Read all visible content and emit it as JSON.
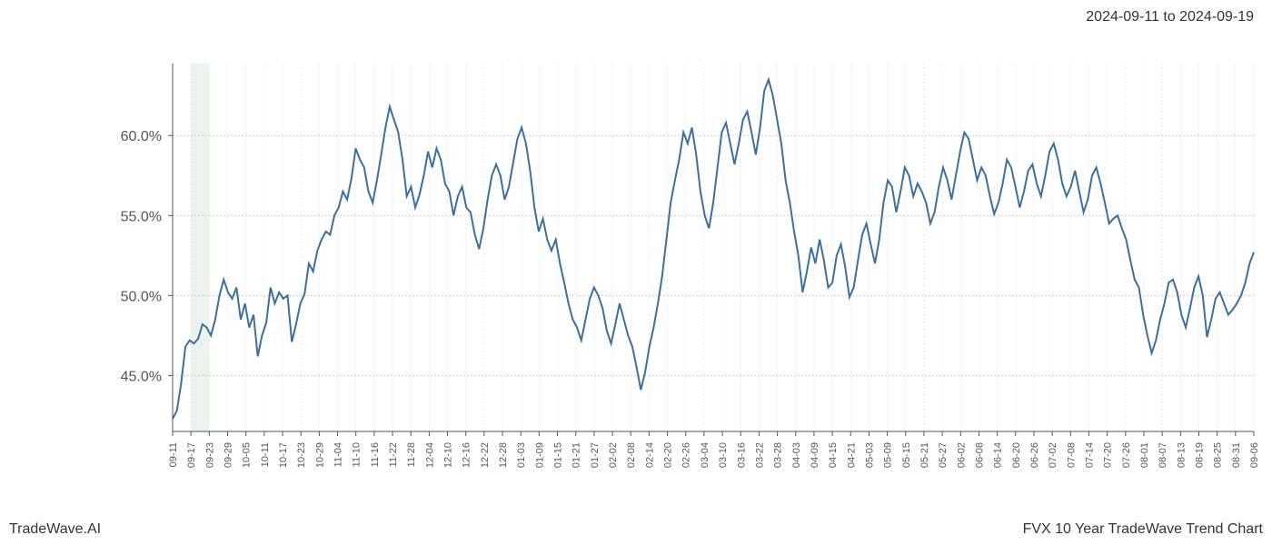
{
  "header": {
    "date_range": "2024-09-11 to 2024-09-19"
  },
  "footer": {
    "brand": "TradeWave.AI",
    "chart_title": "FVX 10 Year TradeWave Trend Chart"
  },
  "chart": {
    "type": "line",
    "background_color": "#ffffff",
    "line_color": "#3b6fa0",
    "line_width": 2,
    "highlight_band_color": "#d9e8d9",
    "grid_color_major": "#cccccc",
    "grid_color_minor": "#dddddd",
    "spine_color": "#555555",
    "y_axis": {
      "ticks": [
        45.0,
        50.0,
        55.0,
        60.0
      ],
      "tick_labels": [
        "45.0%",
        "50.0%",
        "55.0%",
        "60.0%"
      ],
      "ylim": [
        41.5,
        64.5
      ],
      "label_fontsize": 16,
      "label_color": "#555555"
    },
    "x_axis": {
      "tick_labels": [
        "09-11",
        "09-17",
        "09-23",
        "09-29",
        "10-05",
        "10-11",
        "10-17",
        "10-23",
        "10-29",
        "11-04",
        "11-10",
        "11-16",
        "11-22",
        "11-28",
        "12-04",
        "12-10",
        "12-16",
        "12-22",
        "12-28",
        "01-03",
        "01-09",
        "01-15",
        "01-21",
        "01-27",
        "02-02",
        "02-08",
        "02-14",
        "02-20",
        "02-26",
        "03-04",
        "03-10",
        "03-16",
        "03-22",
        "03-28",
        "04-03",
        "04-09",
        "04-15",
        "04-21",
        "05-03",
        "05-09",
        "05-15",
        "05-21",
        "05-27",
        "06-02",
        "06-08",
        "06-14",
        "06-20",
        "06-26",
        "07-02",
        "07-08",
        "07-14",
        "07-20",
        "07-26",
        "08-01",
        "08-07",
        "08-13",
        "08-19",
        "08-25",
        "08-31",
        "09-06"
      ],
      "label_fontsize": 11,
      "label_rotation": 90,
      "label_color": "#555555"
    },
    "highlight_band": {
      "start_index": 1,
      "end_index": 2
    },
    "series": [
      42.3,
      42.8,
      44.5,
      46.8,
      47.2,
      47.0,
      47.3,
      48.2,
      48.0,
      47.5,
      48.5,
      50.0,
      51.0,
      50.2,
      49.8,
      50.5,
      48.5,
      49.5,
      48.0,
      48.8,
      46.2,
      47.5,
      48.3,
      50.5,
      49.5,
      50.2,
      49.8,
      50.0,
      47.1,
      48.2,
      49.5,
      50.1,
      52.0,
      51.5,
      52.8,
      53.5,
      54.0,
      53.8,
      55.0,
      55.5,
      56.5,
      56.0,
      57.3,
      59.2,
      58.5,
      58.0,
      56.5,
      55.8,
      57.2,
      58.8,
      60.5,
      61.8,
      61.0,
      60.2,
      58.5,
      56.2,
      56.8,
      55.5,
      56.3,
      57.5,
      59.0,
      58.0,
      59.2,
      58.5,
      57.0,
      56.5,
      55.0,
      56.2,
      56.8,
      55.5,
      55.2,
      53.8,
      52.9,
      54.2,
      56.0,
      57.5,
      58.2,
      57.5,
      56.0,
      56.8,
      58.3,
      59.8,
      60.5,
      59.5,
      57.8,
      55.5,
      54.0,
      54.8,
      53.5,
      52.8,
      53.5,
      52.0,
      50.8,
      49.5,
      48.5,
      48.0,
      47.2,
      48.5,
      49.8,
      50.5,
      50.0,
      49.2,
      47.8,
      47.0,
      48.2,
      49.5,
      48.5,
      47.5,
      46.8,
      45.5,
      44.1,
      45.2,
      46.8,
      48.0,
      49.5,
      51.2,
      53.5,
      55.8,
      57.2,
      58.5,
      60.2,
      59.5,
      60.5,
      58.8,
      56.5,
      55.0,
      54.2,
      55.8,
      58.0,
      60.2,
      60.8,
      59.5,
      58.2,
      59.5,
      61.0,
      61.5,
      60.2,
      58.8,
      60.5,
      62.8,
      63.5,
      62.5,
      61.0,
      59.5,
      57.2,
      55.8,
      54.0,
      52.5,
      50.2,
      51.5,
      53.0,
      52.0,
      53.5,
      52.2,
      50.5,
      50.8,
      52.5,
      53.2,
      51.8,
      49.9,
      50.5,
      52.2,
      53.8,
      54.5,
      53.2,
      52.0,
      53.5,
      55.8,
      57.2,
      56.8,
      55.2,
      56.5,
      58.0,
      57.5,
      56.2,
      57.0,
      56.5,
      55.8,
      54.5,
      55.2,
      56.8,
      58.0,
      57.2,
      56.0,
      57.5,
      59.0,
      60.2,
      59.8,
      58.5,
      57.2,
      58.0,
      57.5,
      56.2,
      55.1,
      55.8,
      57.0,
      58.5,
      58.0,
      56.8,
      55.5,
      56.5,
      57.8,
      58.2,
      57.0,
      56.2,
      57.5,
      59.0,
      59.5,
      58.5,
      57.0,
      56.2,
      56.8,
      57.8,
      56.5,
      55.2,
      56.0,
      57.5,
      58.0,
      57.0,
      55.8,
      54.5,
      54.8,
      55.0,
      54.2,
      53.5,
      52.2,
      51.0,
      50.5,
      48.8,
      47.5,
      46.4,
      47.2,
      48.5,
      49.5,
      50.8,
      51.0,
      50.2,
      48.8,
      48.0,
      49.2,
      50.5,
      51.2,
      50.0,
      47.4,
      48.5,
      49.8,
      50.2,
      49.5,
      48.8,
      49.1,
      49.5,
      50.0,
      50.8,
      52.0,
      52.7
    ]
  }
}
